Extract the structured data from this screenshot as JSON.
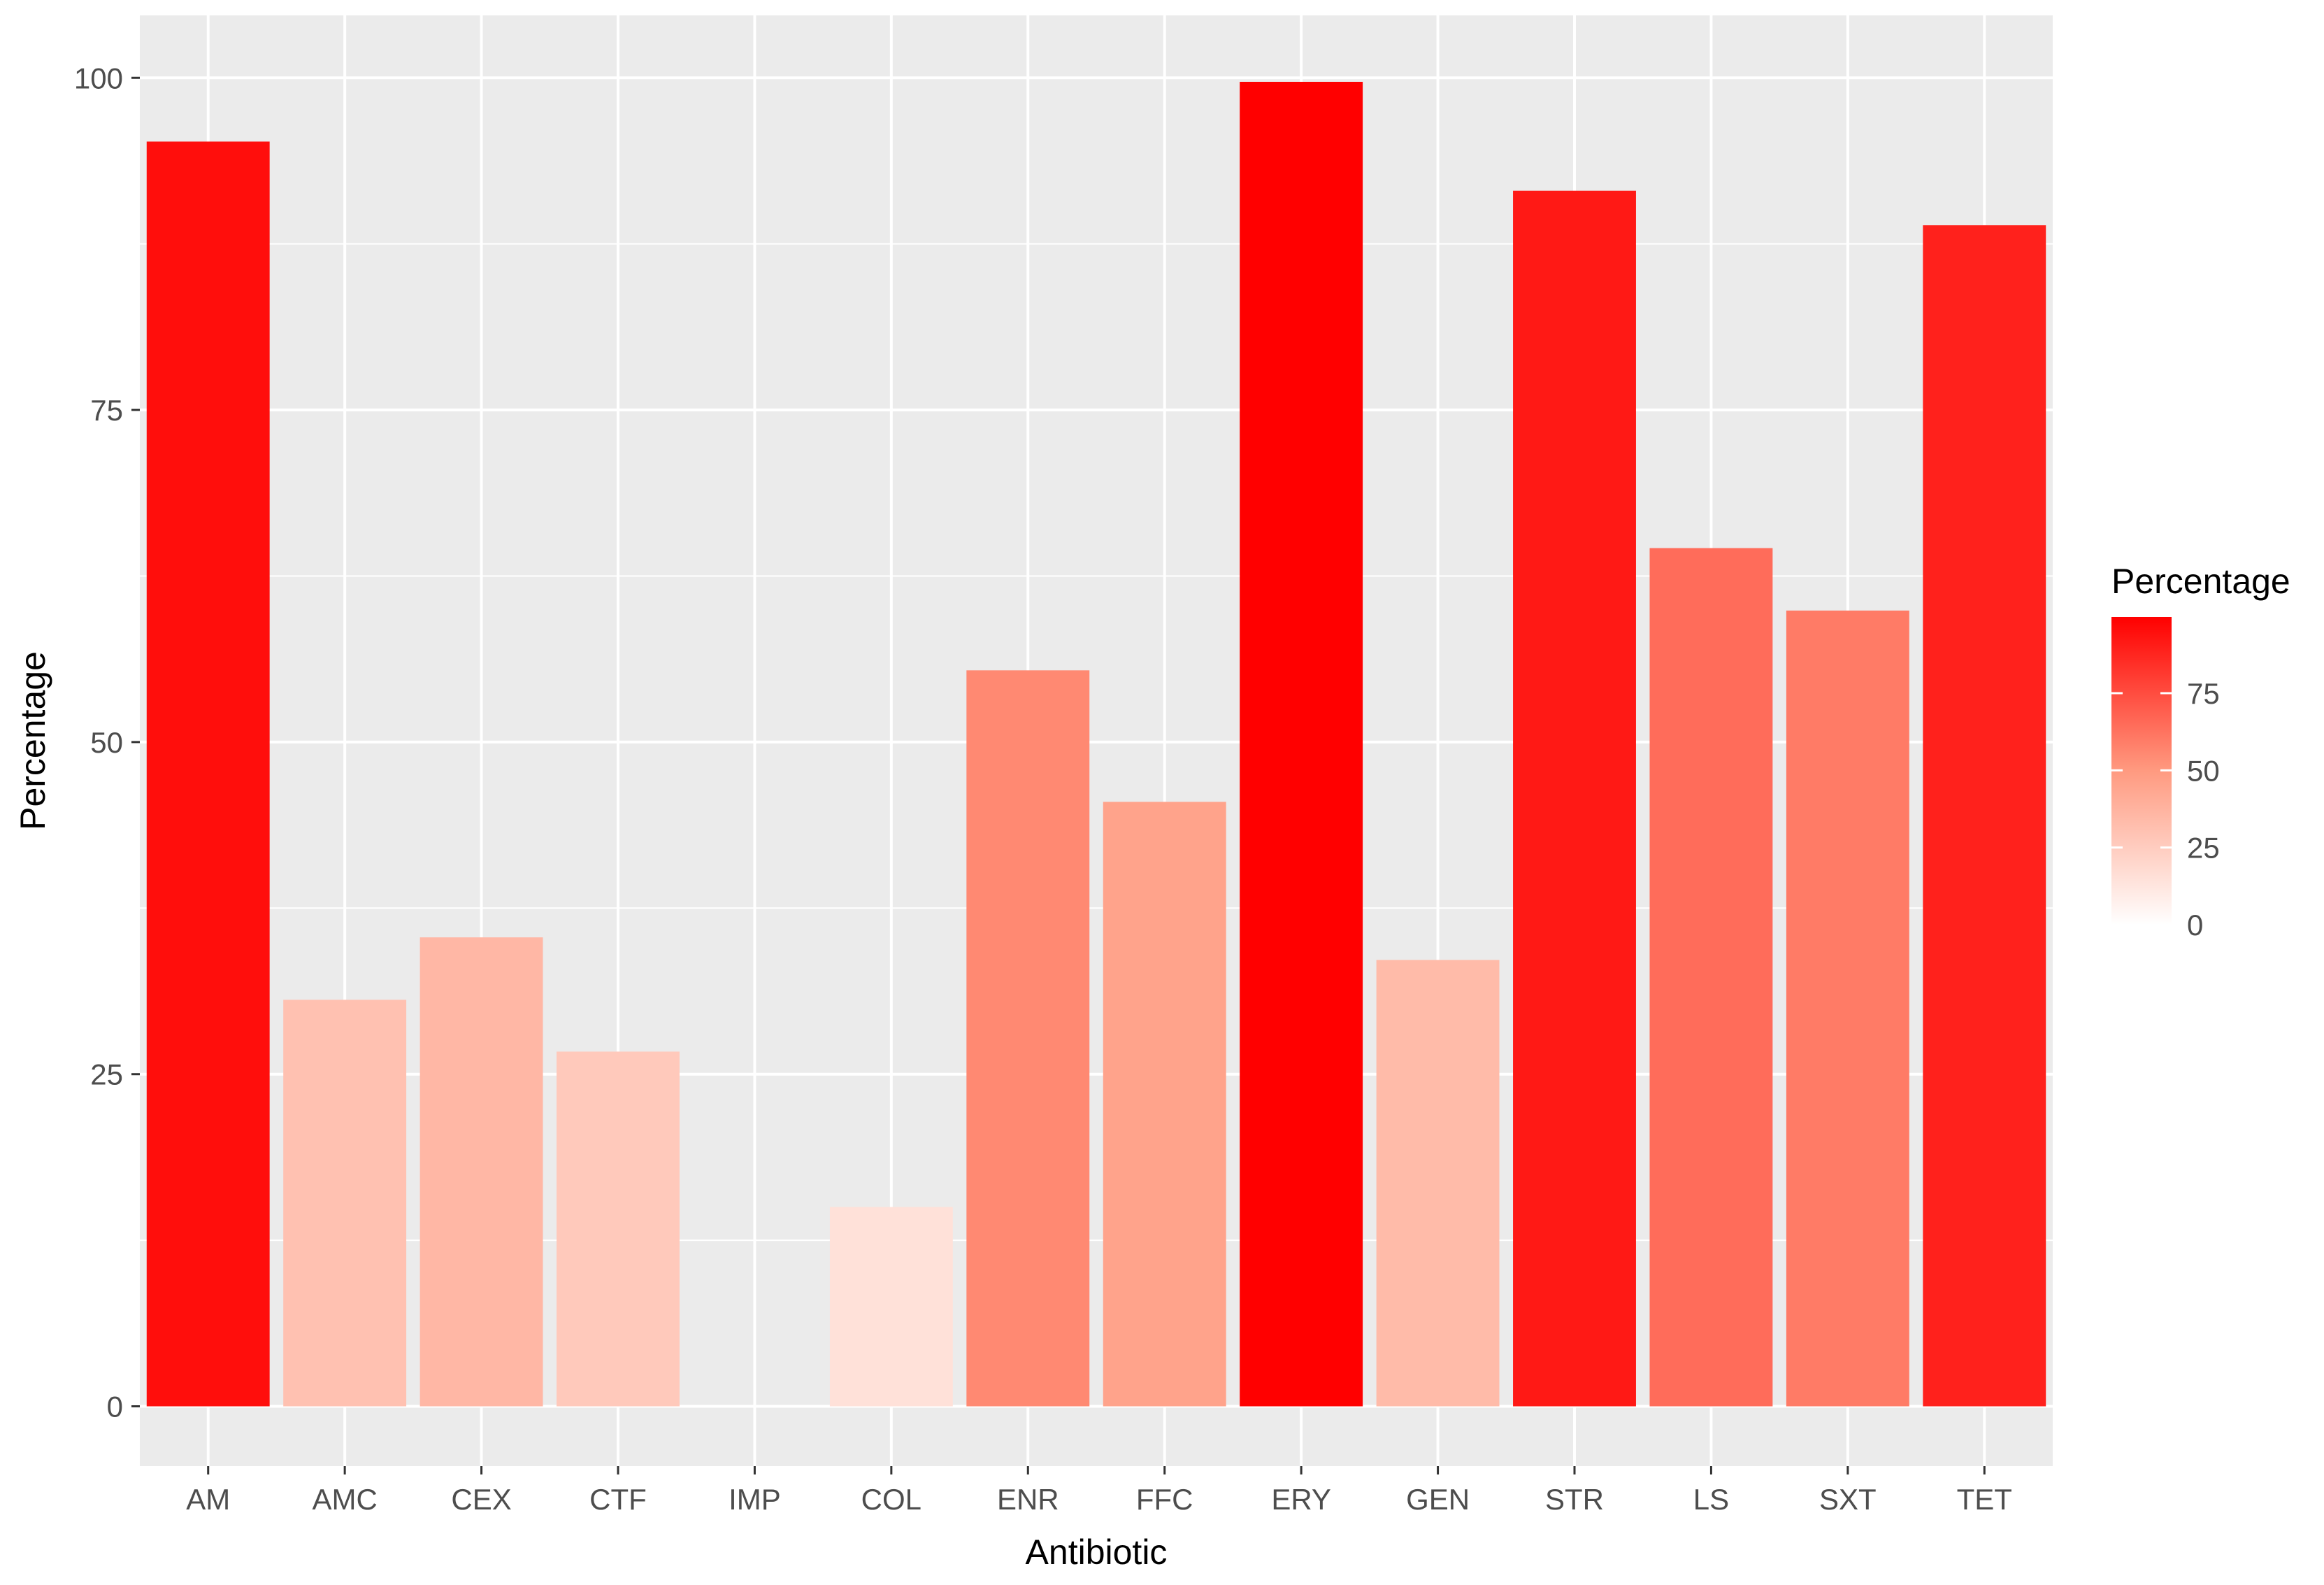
{
  "chart_data": {
    "type": "bar",
    "xlabel": "Antibiotic",
    "ylabel": "Percentage",
    "categories": [
      "AM",
      "AMC",
      "CEX",
      "CTF",
      "IMP",
      "COL",
      "ENR",
      "FFC",
      "ERY",
      "GEN",
      "STR",
      "LS",
      "SXT",
      "TET"
    ],
    "values": [
      95.2,
      30.6,
      35.3,
      26.7,
      0,
      15.0,
      55.4,
      45.5,
      99.7,
      33.6,
      91.5,
      64.6,
      59.9,
      88.9
    ],
    "ylim": [
      -4.5,
      104.7
    ],
    "yticks": [
      0,
      25,
      50,
      75,
      100
    ],
    "ytick_labels": [
      "0",
      "25",
      "50",
      "75",
      "100"
    ],
    "grid": true,
    "legend": {
      "title": "Percentage",
      "placement": "right",
      "type": "colorbar",
      "range": [
        0,
        99.7
      ],
      "ticks": [
        0,
        25,
        50,
        75
      ],
      "tick_labels": [
        "0",
        "25",
        "50",
        "75"
      ],
      "low_color": "#ffffff",
      "high_color": "#ff0000"
    }
  }
}
